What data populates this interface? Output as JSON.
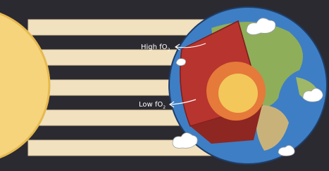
{
  "labels": [
    {
      "text": "High fO",
      "sub": "2"
    },
    {
      "text": "Low fO",
      "sub": "2"
    }
  ]
}
